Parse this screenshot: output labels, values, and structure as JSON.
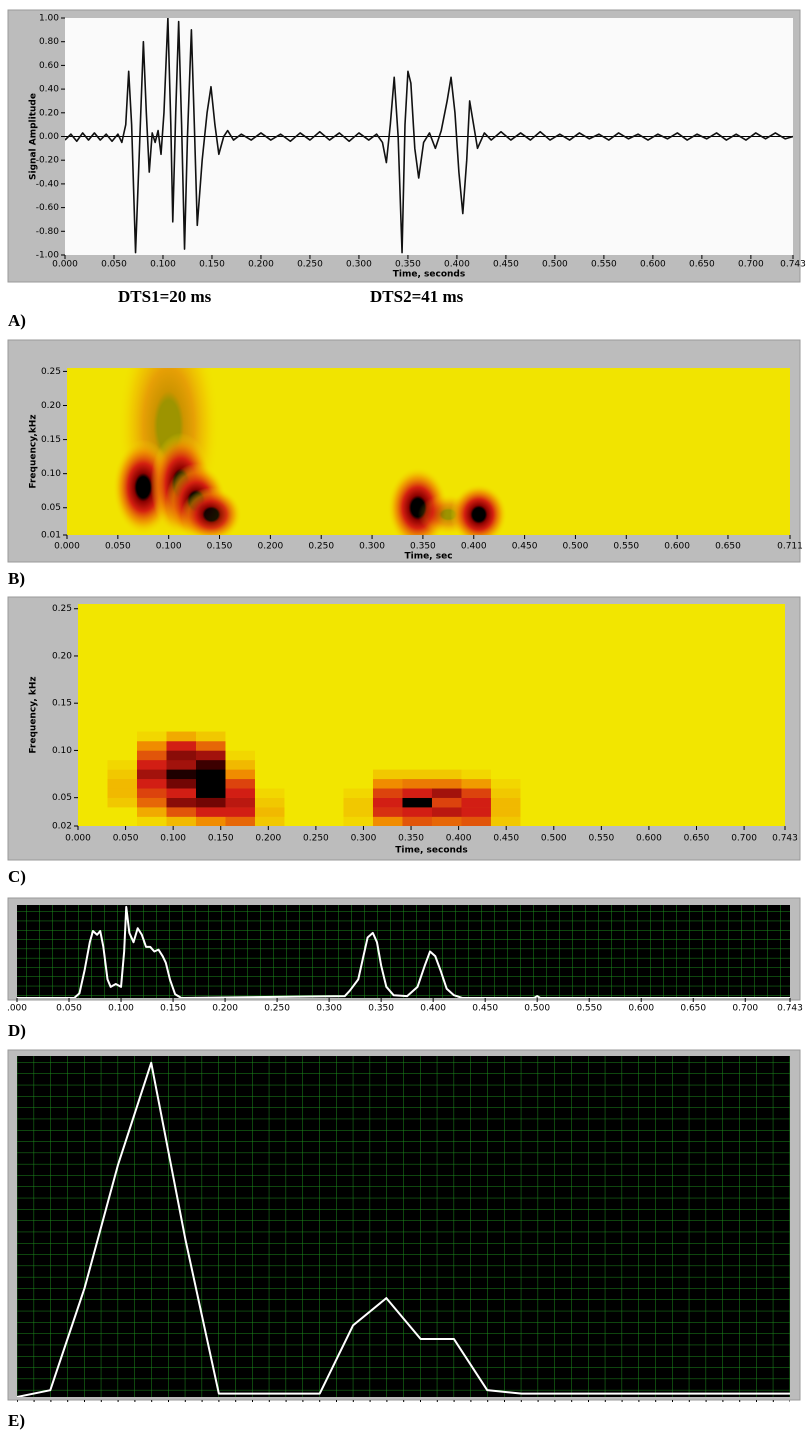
{
  "chart_data": [
    {
      "type": "line",
      "panel": "A)",
      "ylabel": "Signal Amplitude",
      "xlabel": "Time, seconds",
      "annotations": [
        "DTS1=20 ms",
        "DTS2=41 ms"
      ],
      "color": "#111111",
      "background": "#fafafa",
      "xlim": [
        0,
        0.743
      ],
      "ylim": [
        -1,
        1
      ],
      "xticks": [
        {
          "value": 0,
          "label": "0.000"
        },
        {
          "value": 0.05,
          "label": "0.050"
        },
        {
          "value": 0.1,
          "label": "0.100"
        },
        {
          "value": 0.15,
          "label": "0.150"
        },
        {
          "value": 0.2,
          "label": "0.200"
        },
        {
          "value": 0.25,
          "label": "0.250"
        },
        {
          "value": 0.3,
          "label": "0.300"
        },
        {
          "value": 0.35,
          "label": "0.350"
        },
        {
          "value": 0.4,
          "label": "0.400"
        },
        {
          "value": 0.45,
          "label": "0.450"
        },
        {
          "value": 0.5,
          "label": "0.500"
        },
        {
          "value": 0.55,
          "label": "0.550"
        },
        {
          "value": 0.6,
          "label": "0.600"
        },
        {
          "value": 0.65,
          "label": "0.650"
        },
        {
          "value": 0.7,
          "label": "0.700"
        },
        {
          "value": 0.743,
          "label": "0.743"
        }
      ],
      "yticks": [
        {
          "value": 1,
          "label": "1.00"
        },
        {
          "value": 0.8,
          "label": "0.80"
        },
        {
          "value": 0.6,
          "label": "0.60"
        },
        {
          "value": 0.4,
          "label": "0.40"
        },
        {
          "value": 0.2,
          "label": "0.20"
        },
        {
          "value": 0,
          "label": "0.00"
        },
        {
          "value": -0.2,
          "label": "-0.20"
        },
        {
          "value": -0.4,
          "label": "-0.40"
        },
        {
          "value": -0.6,
          "label": "-0.60"
        },
        {
          "value": -0.8,
          "label": "-0.80"
        },
        {
          "value": -1,
          "label": "-1.00"
        }
      ],
      "x": [
        0,
        0.006,
        0.012,
        0.018,
        0.024,
        0.03,
        0.036,
        0.042,
        0.048,
        0.054,
        0.058,
        0.062,
        0.065,
        0.068,
        0.072,
        0.076,
        0.08,
        0.083,
        0.086,
        0.089,
        0.092,
        0.095,
        0.098,
        0.101,
        0.105,
        0.108,
        0.11,
        0.113,
        0.116,
        0.119,
        0.122,
        0.125,
        0.129,
        0.132,
        0.135,
        0.14,
        0.145,
        0.149,
        0.153,
        0.157,
        0.162,
        0.166,
        0.172,
        0.18,
        0.19,
        0.2,
        0.21,
        0.22,
        0.23,
        0.24,
        0.25,
        0.26,
        0.27,
        0.28,
        0.29,
        0.3,
        0.31,
        0.318,
        0.324,
        0.328,
        0.332,
        0.336,
        0.34,
        0.344,
        0.347,
        0.35,
        0.353,
        0.357,
        0.361,
        0.366,
        0.372,
        0.378,
        0.384,
        0.39,
        0.394,
        0.398,
        0.402,
        0.406,
        0.41,
        0.413,
        0.417,
        0.421,
        0.428,
        0.435,
        0.445,
        0.455,
        0.465,
        0.475,
        0.485,
        0.495,
        0.505,
        0.515,
        0.525,
        0.535,
        0.545,
        0.555,
        0.565,
        0.575,
        0.585,
        0.595,
        0.605,
        0.615,
        0.625,
        0.635,
        0.645,
        0.655,
        0.665,
        0.675,
        0.685,
        0.695,
        0.705,
        0.715,
        0.725,
        0.735,
        0.743
      ],
      "values": [
        -0.03,
        0.02,
        -0.04,
        0.03,
        -0.03,
        0.03,
        -0.03,
        0.02,
        -0.04,
        0.02,
        -0.05,
        0.1,
        0.55,
        0.1,
        -0.98,
        -0.1,
        0.8,
        0.2,
        -0.3,
        0.03,
        -0.05,
        0.05,
        -0.15,
        0.2,
        1.0,
        0.1,
        -0.72,
        0.2,
        0.97,
        0.1,
        -0.95,
        0.0,
        0.9,
        0.1,
        -0.75,
        -0.2,
        0.2,
        0.42,
        0.1,
        -0.15,
        0.0,
        0.05,
        -0.03,
        0.02,
        -0.03,
        0.03,
        -0.03,
        0.02,
        -0.04,
        0.03,
        -0.03,
        0.04,
        -0.03,
        0.03,
        -0.04,
        0.03,
        -0.03,
        0.02,
        -0.05,
        -0.22,
        0.1,
        0.5,
        0.0,
        -0.98,
        0.1,
        0.55,
        0.45,
        -0.1,
        -0.35,
        -0.05,
        0.03,
        -0.1,
        0.05,
        0.3,
        0.5,
        0.2,
        -0.3,
        -0.65,
        -0.2,
        0.3,
        0.1,
        -0.1,
        0.03,
        -0.03,
        0.04,
        -0.03,
        0.03,
        -0.03,
        0.04,
        -0.03,
        0.02,
        -0.03,
        0.03,
        -0.02,
        0.02,
        -0.03,
        0.03,
        -0.02,
        0.02,
        -0.03,
        0.02,
        -0.02,
        0.03,
        -0.03,
        0.02,
        -0.02,
        0.03,
        -0.03,
        0.02,
        -0.03,
        0.03,
        -0.02,
        0.03,
        -0.02,
        0.0
      ]
    },
    {
      "type": "spectrogram",
      "panel": "B)",
      "ylabel": "Frequency,kHz",
      "xlabel": "Time, sec",
      "background": "#f1e400",
      "xlim": [
        0,
        0.711
      ],
      "ylim": [
        0.01,
        0.255
      ],
      "xticks": [
        {
          "value": 0,
          "label": "0.000"
        },
        {
          "value": 0.05,
          "label": "0.050"
        },
        {
          "value": 0.1,
          "label": "0.100"
        },
        {
          "value": 0.15,
          "label": "0.150"
        },
        {
          "value": 0.2,
          "label": "0.200"
        },
        {
          "value": 0.25,
          "label": "0.250"
        },
        {
          "value": 0.3,
          "label": "0.300"
        },
        {
          "value": 0.35,
          "label": "0.350"
        },
        {
          "value": 0.4,
          "label": "0.400"
        },
        {
          "value": 0.45,
          "label": "0.450"
        },
        {
          "value": 0.5,
          "label": "0.500"
        },
        {
          "value": 0.55,
          "label": "0.550"
        },
        {
          "value": 0.6,
          "label": "0.600"
        },
        {
          "value": 0.65,
          "label": "0.650"
        },
        {
          "value": 0.711,
          "label": "0.711"
        }
      ],
      "yticks": [
        {
          "value": 0.25,
          "label": "0.25"
        },
        {
          "value": 0.2,
          "label": "0.20"
        },
        {
          "value": 0.15,
          "label": "0.15"
        },
        {
          "value": 0.1,
          "label": "0.10"
        },
        {
          "value": 0.05,
          "label": "0.05"
        },
        {
          "value": 0.01,
          "label": "0.01"
        }
      ],
      "spots": [
        {
          "x": 0.1,
          "y": 0.17,
          "width": 0.05,
          "height": 0.17,
          "value": 0.35
        },
        {
          "x": 0.075,
          "y": 0.08,
          "width": 0.03,
          "height": 0.07,
          "value": 1
        },
        {
          "x": 0.112,
          "y": 0.085,
          "width": 0.03,
          "height": 0.075,
          "value": 1
        },
        {
          "x": 0.127,
          "y": 0.06,
          "width": 0.03,
          "height": 0.055,
          "value": 1
        },
        {
          "x": 0.142,
          "y": 0.04,
          "width": 0.03,
          "height": 0.04,
          "value": 0.9
        },
        {
          "x": 0.345,
          "y": 0.05,
          "width": 0.03,
          "height": 0.06,
          "value": 1
        },
        {
          "x": 0.375,
          "y": 0.04,
          "width": 0.03,
          "height": 0.03,
          "value": 0.35
        },
        {
          "x": 0.405,
          "y": 0.04,
          "width": 0.028,
          "height": 0.045,
          "value": 1
        }
      ]
    },
    {
      "type": "heatmap",
      "panel": "C)",
      "ylabel": "Frequency, kHz",
      "xlabel": "Time, seconds",
      "background": "#f2e600",
      "xlim": [
        0,
        0.743
      ],
      "ylim": [
        0.02,
        0.255
      ],
      "xticks": [
        {
          "value": 0,
          "label": "0.000"
        },
        {
          "value": 0.05,
          "label": "0.050"
        },
        {
          "value": 0.1,
          "label": "0.100"
        },
        {
          "value": 0.15,
          "label": "0.150"
        },
        {
          "value": 0.2,
          "label": "0.200"
        },
        {
          "value": 0.25,
          "label": "0.250"
        },
        {
          "value": 0.3,
          "label": "0.300"
        },
        {
          "value": 0.35,
          "label": "0.350"
        },
        {
          "value": 0.4,
          "label": "0.400"
        },
        {
          "value": 0.45,
          "label": "0.450"
        },
        {
          "value": 0.5,
          "label": "0.500"
        },
        {
          "value": 0.55,
          "label": "0.550"
        },
        {
          "value": 0.6,
          "label": "0.600"
        },
        {
          "value": 0.65,
          "label": "0.650"
        },
        {
          "value": 0.7,
          "label": "0.700"
        },
        {
          "value": 0.743,
          "label": "0.743"
        }
      ],
      "yticks": [
        {
          "value": 0.25,
          "label": "0.25"
        },
        {
          "value": 0.2,
          "label": "0.20"
        },
        {
          "value": 0.15,
          "label": "0.15"
        },
        {
          "value": 0.1,
          "label": "0.10"
        },
        {
          "value": 0.05,
          "label": "0.05"
        },
        {
          "value": 0.02,
          "label": "0.02"
        }
      ],
      "xbins": [
        0,
        0.031,
        0.062,
        0.093,
        0.124,
        0.155,
        0.186,
        0.217,
        0.248,
        0.279,
        0.31,
        0.341,
        0.372,
        0.403,
        0.434,
        0.465,
        0.495,
        0.526,
        0.557,
        0.588,
        0.619,
        0.65,
        0.681,
        0.712,
        0.743
      ],
      "ybins": [
        0.02,
        0.03,
        0.04,
        0.05,
        0.06,
        0.07,
        0.08,
        0.09,
        0.1,
        0.11,
        0.12
      ],
      "z": [
        [
          0,
          0,
          0,
          0,
          0,
          0,
          0,
          0,
          0,
          0
        ],
        [
          0,
          0,
          0.1,
          0.15,
          0.15,
          0.1,
          0.05,
          0,
          0,
          0
        ],
        [
          0.05,
          0.2,
          0.4,
          0.5,
          0.6,
          0.7,
          0.6,
          0.45,
          0.3,
          0.05
        ],
        [
          0.15,
          0.45,
          0.75,
          0.6,
          0.8,
          0.95,
          0.7,
          0.75,
          0.6,
          0.2
        ],
        [
          0.3,
          0.6,
          0.8,
          1,
          1,
          1,
          0.9,
          0.7,
          0.4,
          0.1
        ],
        [
          0.4,
          0.6,
          0.65,
          0.6,
          0.5,
          0.3,
          0.15,
          0.05,
          0,
          0
        ],
        [
          0.1,
          0.15,
          0.1,
          0.05,
          0,
          0,
          0,
          0,
          0,
          0
        ],
        [
          0,
          0,
          0,
          0,
          0,
          0,
          0,
          0,
          0,
          0
        ],
        [
          0,
          0,
          0,
          0,
          0,
          0,
          0,
          0,
          0,
          0
        ],
        [
          0.05,
          0.1,
          0.1,
          0.05,
          0,
          0,
          0,
          0,
          0,
          0
        ],
        [
          0.3,
          0.55,
          0.6,
          0.5,
          0.3,
          0.1,
          0,
          0,
          0,
          0
        ],
        [
          0.45,
          0.6,
          1,
          0.6,
          0.35,
          0.1,
          0,
          0,
          0,
          0
        ],
        [
          0.4,
          0.65,
          0.5,
          0.7,
          0.35,
          0.1,
          0,
          0,
          0,
          0
        ],
        [
          0.45,
          0.6,
          0.6,
          0.5,
          0.25,
          0.05,
          0,
          0,
          0,
          0
        ],
        [
          0.1,
          0.15,
          0.15,
          0.1,
          0.05,
          0,
          0,
          0,
          0,
          0
        ],
        [
          0,
          0,
          0,
          0,
          0,
          0,
          0,
          0,
          0,
          0
        ],
        [
          0,
          0,
          0,
          0,
          0,
          0,
          0,
          0,
          0,
          0
        ],
        [
          0,
          0,
          0,
          0,
          0,
          0,
          0,
          0,
          0,
          0
        ],
        [
          0,
          0,
          0,
          0,
          0,
          0,
          0,
          0,
          0,
          0
        ],
        [
          0,
          0,
          0,
          0,
          0,
          0,
          0,
          0,
          0,
          0
        ],
        [
          0,
          0,
          0,
          0,
          0,
          0,
          0,
          0,
          0,
          0
        ],
        [
          0,
          0,
          0,
          0,
          0,
          0,
          0,
          0,
          0,
          0
        ],
        [
          0,
          0,
          0,
          0,
          0,
          0,
          0,
          0,
          0,
          0
        ],
        [
          0,
          0,
          0,
          0,
          0,
          0,
          0,
          0,
          0,
          0
        ]
      ]
    },
    {
      "type": "line",
      "panel": "D)",
      "color": "#ffffff",
      "background": "#000000",
      "grid": true,
      "xlim": [
        0,
        0.743
      ],
      "ylim": [
        0,
        1
      ],
      "xticks": [
        {
          "value": 0,
          "label": ".000"
        },
        {
          "value": 0.05,
          "label": "0.050"
        },
        {
          "value": 0.1,
          "label": "0.100"
        },
        {
          "value": 0.15,
          "label": "0.150"
        },
        {
          "value": 0.2,
          "label": "0.200"
        },
        {
          "value": 0.25,
          "label": "0.250"
        },
        {
          "value": 0.3,
          "label": "0.300"
        },
        {
          "value": 0.35,
          "label": "0.350"
        },
        {
          "value": 0.4,
          "label": "0.400"
        },
        {
          "value": 0.45,
          "label": "0.450"
        },
        {
          "value": 0.5,
          "label": "0.500"
        },
        {
          "value": 0.55,
          "label": "0.550"
        },
        {
          "value": 0.6,
          "label": "0.600"
        },
        {
          "value": 0.65,
          "label": "0.650"
        },
        {
          "value": 0.7,
          "label": "0.700"
        },
        {
          "value": 0.743,
          "label": "0.743"
        }
      ],
      "x": [
        0,
        0.055,
        0.06,
        0.065,
        0.07,
        0.073,
        0.077,
        0.08,
        0.083,
        0.087,
        0.09,
        0.095,
        0.1,
        0.103,
        0.105,
        0.108,
        0.112,
        0.116,
        0.12,
        0.124,
        0.128,
        0.132,
        0.136,
        0.14,
        0.143,
        0.147,
        0.152,
        0.158,
        0.315,
        0.32,
        0.328,
        0.333,
        0.337,
        0.342,
        0.346,
        0.35,
        0.355,
        0.362,
        0.375,
        0.385,
        0.392,
        0.397,
        0.402,
        0.407,
        0.413,
        0.42,
        0.428,
        0.497,
        0.5,
        0.503,
        0.743
      ],
      "values": [
        0,
        0,
        0.05,
        0.3,
        0.6,
        0.72,
        0.68,
        0.72,
        0.55,
        0.2,
        0.12,
        0.15,
        0.12,
        0.5,
        0.98,
        0.7,
        0.6,
        0.75,
        0.68,
        0.55,
        0.55,
        0.5,
        0.52,
        0.45,
        0.38,
        0.2,
        0.04,
        0,
        0.02,
        0.08,
        0.2,
        0.45,
        0.65,
        0.7,
        0.6,
        0.35,
        0.12,
        0.03,
        0.02,
        0.12,
        0.35,
        0.5,
        0.45,
        0.3,
        0.1,
        0.03,
        0,
        0,
        0.02,
        0,
        0
      ]
    },
    {
      "type": "line",
      "panel": "E)",
      "color": "#ffffff",
      "background": "#000000",
      "grid": true,
      "xlim": [
        0,
        0.743
      ],
      "ylim": [
        0,
        1
      ],
      "x": [
        0,
        0.032,
        0.065,
        0.097,
        0.129,
        0.162,
        0.194,
        0.226,
        0.258,
        0.291,
        0.323,
        0.355,
        0.388,
        0.42,
        0.452,
        0.485,
        0.517,
        0.549,
        0.582,
        0.614,
        0.646,
        0.678,
        0.711,
        0.743
      ],
      "values": [
        0,
        0.02,
        0.32,
        0.68,
        0.98,
        0.46,
        0.01,
        0.01,
        0.01,
        0.01,
        0.21,
        0.29,
        0.17,
        0.17,
        0.02,
        0.01,
        0.01,
        0.01,
        0.01,
        0.01,
        0.01,
        0.01,
        0.01,
        0.01
      ]
    }
  ]
}
